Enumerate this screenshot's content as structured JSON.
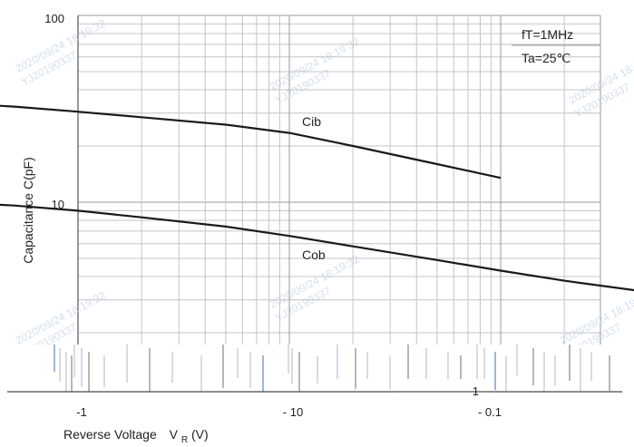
{
  "chart_data": {
    "type": "line",
    "title": "",
    "xlabel_main": "Reverse Voltage",
    "xlabel_sym": "V",
    "xlabel_sub": "R",
    "xlabel_unit": "(V)",
    "ylabel": "Capacitance  C(pF)",
    "x_scale": "log",
    "y_scale": "log",
    "x_ticks": [
      "-1",
      "- 10",
      "- 0.1"
    ],
    "y_ticks": [
      "100",
      "10",
      "1"
    ],
    "conditions": [
      "fT=1MHz",
      "Ta=25℃"
    ],
    "grid": true,
    "series": [
      {
        "name": "Cib",
        "x": [
          0.1,
          0.2,
          0.5,
          1,
          2,
          5,
          10,
          20,
          50,
          100
        ],
        "y": [
          35.5,
          34.5,
          32.5,
          30.5,
          28.5,
          26,
          23.5,
          20,
          16,
          13.5
        ]
      },
      {
        "name": "Cob",
        "x": [
          0.1,
          0.2,
          0.5,
          1,
          2,
          5,
          10,
          20,
          50,
          100,
          200,
          500,
          1000
        ],
        "y": [
          10.5,
          10.1,
          9.6,
          9.0,
          8.3,
          7.4,
          6.6,
          5.8,
          4.9,
          4.3,
          3.8,
          3.3,
          2.95
        ]
      }
    ],
    "watermarks": [
      "2020/09/24 18:19:32",
      "YJ20190337"
    ]
  }
}
